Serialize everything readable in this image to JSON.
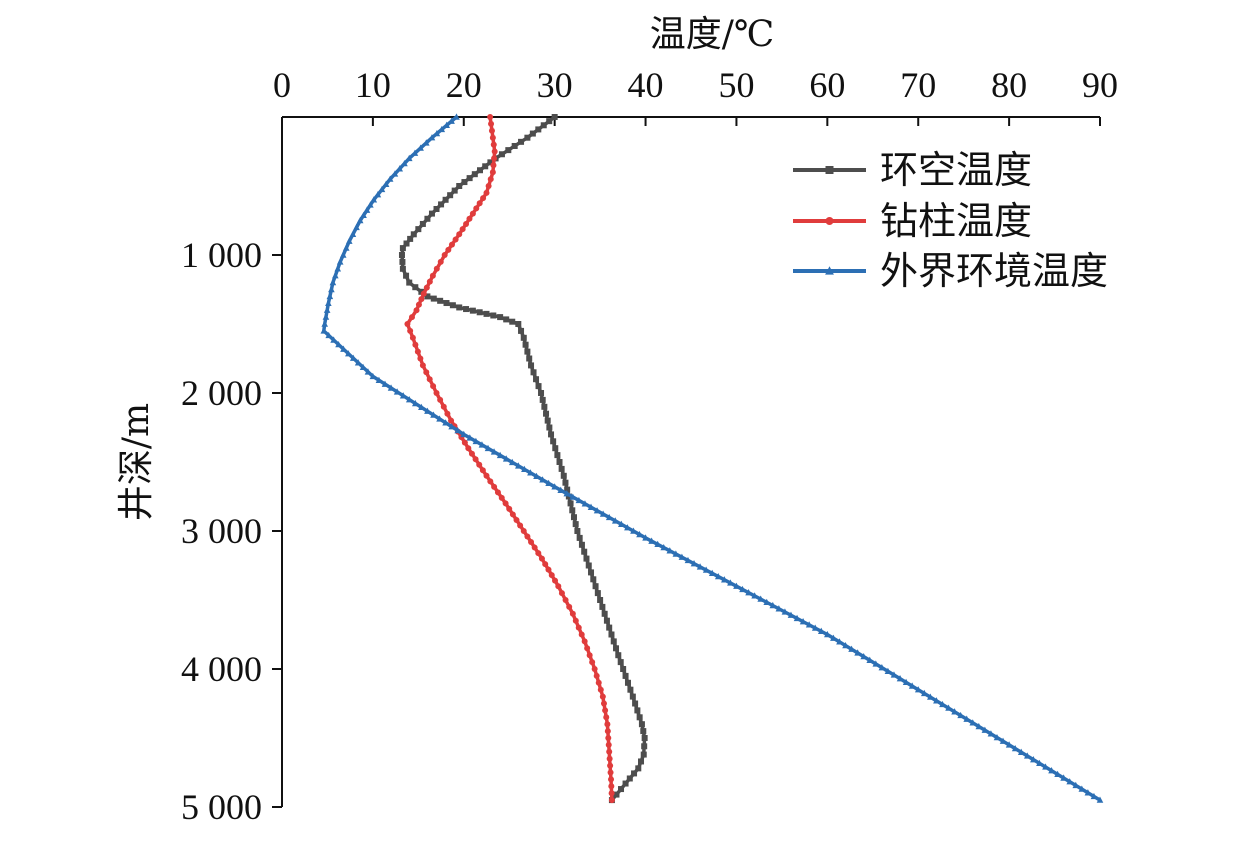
{
  "chart_data": {
    "type": "line",
    "title": "",
    "xlabel": "温度/℃",
    "ylabel": "井深/m",
    "x_axis_position": "top",
    "y_axis_inverted": true,
    "xlim": [
      0,
      90
    ],
    "ylim": [
      0,
      5000
    ],
    "x_ticks": [
      0,
      10,
      20,
      30,
      40,
      50,
      60,
      70,
      80,
      90
    ],
    "x_tick_labels": [
      "0",
      "10",
      "20",
      "30",
      "40",
      "50",
      "60",
      "70",
      "80",
      "90"
    ],
    "y_ticks": [
      1000,
      2000,
      3000,
      4000,
      5000
    ],
    "y_tick_labels": [
      "1 000",
      "2 000",
      "3 000",
      "4 000",
      "5 000"
    ],
    "grid": false,
    "legend_position": "top-right",
    "series": [
      {
        "name": "环空温度",
        "color": "#4d4d4d",
        "marker": "square",
        "points": [
          [
            30.0,
            0
          ],
          [
            27.0,
            150
          ],
          [
            23.5,
            300
          ],
          [
            19.5,
            500
          ],
          [
            16.5,
            700
          ],
          [
            14.5,
            850
          ],
          [
            13.3,
            950
          ],
          [
            13.2,
            1000
          ],
          [
            13.3,
            1100
          ],
          [
            14.0,
            1200
          ],
          [
            16.0,
            1300
          ],
          [
            19.5,
            1380
          ],
          [
            24.0,
            1450
          ],
          [
            26.0,
            1500
          ],
          [
            26.6,
            1600
          ],
          [
            27.4,
            1800
          ],
          [
            28.5,
            2000
          ],
          [
            29.6,
            2300
          ],
          [
            31.0,
            2600
          ],
          [
            32.5,
            3000
          ],
          [
            34.0,
            3300
          ],
          [
            35.5,
            3600
          ],
          [
            37.0,
            3900
          ],
          [
            38.6,
            4200
          ],
          [
            39.6,
            4400
          ],
          [
            39.9,
            4500
          ],
          [
            39.8,
            4620
          ],
          [
            39.2,
            4720
          ],
          [
            37.8,
            4830
          ],
          [
            36.3,
            4950
          ]
        ]
      },
      {
        "name": "钻柱温度",
        "color": "#e03c3c",
        "marker": "circle",
        "points": [
          [
            22.9,
            0
          ],
          [
            23.1,
            100
          ],
          [
            23.4,
            250
          ],
          [
            23.2,
            400
          ],
          [
            22.5,
            550
          ],
          [
            21.0,
            700
          ],
          [
            19.5,
            850
          ],
          [
            17.9,
            1000
          ],
          [
            16.6,
            1150
          ],
          [
            15.6,
            1280
          ],
          [
            14.8,
            1400
          ],
          [
            13.8,
            1500
          ],
          [
            14.4,
            1600
          ],
          [
            15.5,
            1800
          ],
          [
            17.0,
            2000
          ],
          [
            18.6,
            2200
          ],
          [
            20.5,
            2400
          ],
          [
            22.5,
            2600
          ],
          [
            24.6,
            2800
          ],
          [
            26.6,
            3000
          ],
          [
            28.6,
            3200
          ],
          [
            30.4,
            3400
          ],
          [
            32.0,
            3600
          ],
          [
            33.3,
            3800
          ],
          [
            34.4,
            4000
          ],
          [
            35.3,
            4200
          ],
          [
            35.8,
            4400
          ],
          [
            36.0,
            4600
          ],
          [
            36.2,
            4800
          ],
          [
            36.3,
            4950
          ]
        ]
      },
      {
        "name": "外界环境温度",
        "color": "#2c6fb4",
        "marker": "triangle",
        "points": [
          [
            19.2,
            0
          ],
          [
            16.5,
            150
          ],
          [
            14.0,
            300
          ],
          [
            11.9,
            450
          ],
          [
            10.1,
            600
          ],
          [
            8.6,
            750
          ],
          [
            7.4,
            900
          ],
          [
            6.4,
            1050
          ],
          [
            5.6,
            1200
          ],
          [
            5.1,
            1350
          ],
          [
            4.7,
            1500
          ],
          [
            4.6,
            1550
          ],
          [
            10.0,
            1880
          ],
          [
            20.0,
            2300
          ],
          [
            30.0,
            2680
          ],
          [
            40.0,
            3050
          ],
          [
            50.0,
            3400
          ],
          [
            60.0,
            3750
          ],
          [
            70.0,
            4150
          ],
          [
            80.0,
            4550
          ],
          [
            90.0,
            4950
          ]
        ]
      }
    ]
  }
}
